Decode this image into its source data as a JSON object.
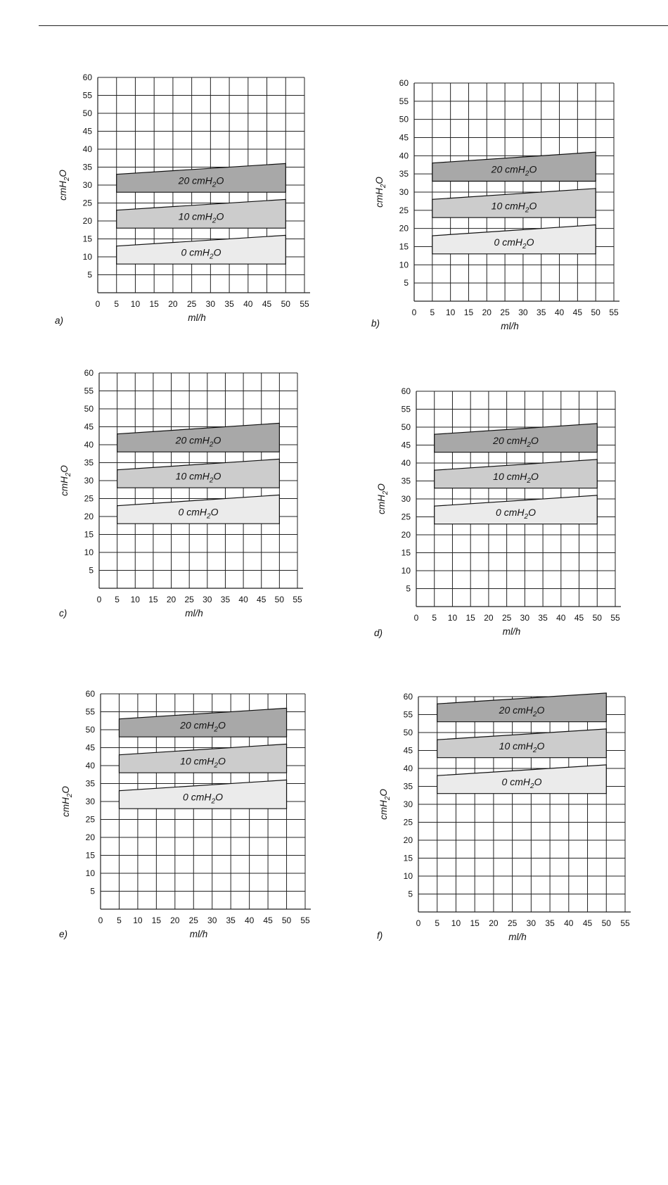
{
  "page": {
    "background": "#ffffff",
    "line_color": "#222222"
  },
  "band_colors": {
    "0 cmH2O": "#ebebeb",
    "10 cmH2O": "#cccccc",
    "20 cmH2O": "#a8a8a8"
  },
  "chart_data": [
    {
      "type": "area",
      "panel": "a)",
      "xlabel": "ml/h",
      "ylabel": "cmH2O",
      "xlim": [
        0,
        55
      ],
      "ylim": [
        0,
        60
      ],
      "x_ticks": [
        "0",
        "5",
        "10",
        "15",
        "20",
        "25",
        "30",
        "35",
        "40",
        "45",
        "50",
        "55"
      ],
      "y_ticks": [
        "5",
        "10",
        "15",
        "20",
        "25",
        "30",
        "35",
        "40",
        "45",
        "50",
        "55",
        "60"
      ],
      "grid": true,
      "series": [
        {
          "name": "0 cmH2O",
          "x": [
            5,
            50
          ],
          "lower": [
            8,
            8
          ],
          "upper": [
            13,
            16
          ]
        },
        {
          "name": "10 cmH2O",
          "x": [
            5,
            50
          ],
          "lower": [
            18,
            18
          ],
          "upper": [
            23,
            26
          ]
        },
        {
          "name": "20 cmH2O",
          "x": [
            5,
            50
          ],
          "lower": [
            28,
            28
          ],
          "upper": [
            33,
            36
          ]
        }
      ]
    },
    {
      "type": "area",
      "panel": "b)",
      "xlabel": "ml/h",
      "ylabel": "cmH2O",
      "xlim": [
        0,
        55
      ],
      "ylim": [
        0,
        60
      ],
      "x_ticks": [
        "0",
        "5",
        "10",
        "15",
        "20",
        "25",
        "30",
        "35",
        "40",
        "45",
        "50",
        "55"
      ],
      "y_ticks": [
        "5",
        "10",
        "15",
        "20",
        "25",
        "30",
        "35",
        "40",
        "45",
        "50",
        "55",
        "60"
      ],
      "grid": true,
      "series": [
        {
          "name": "0 cmH2O",
          "x": [
            5,
            50
          ],
          "lower": [
            13,
            13
          ],
          "upper": [
            18,
            21
          ]
        },
        {
          "name": "10 cmH2O",
          "x": [
            5,
            50
          ],
          "lower": [
            23,
            23
          ],
          "upper": [
            28,
            31
          ]
        },
        {
          "name": "20 cmH2O",
          "x": [
            5,
            50
          ],
          "lower": [
            33,
            33
          ],
          "upper": [
            38,
            41
          ]
        }
      ]
    },
    {
      "type": "area",
      "panel": "c)",
      "xlabel": "ml/h",
      "ylabel": "cmH2O",
      "xlim": [
        0,
        55
      ],
      "ylim": [
        0,
        60
      ],
      "x_ticks": [
        "0",
        "5",
        "10",
        "15",
        "20",
        "25",
        "30",
        "35",
        "40",
        "45",
        "50",
        "55"
      ],
      "y_ticks": [
        "5",
        "10",
        "15",
        "20",
        "25",
        "30",
        "35",
        "40",
        "45",
        "50",
        "55",
        "60"
      ],
      "grid": true,
      "series": [
        {
          "name": "0 cmH2O",
          "x": [
            5,
            50
          ],
          "lower": [
            18,
            18
          ],
          "upper": [
            23,
            26
          ]
        },
        {
          "name": "10 cmH2O",
          "x": [
            5,
            50
          ],
          "lower": [
            28,
            28
          ],
          "upper": [
            33,
            36
          ]
        },
        {
          "name": "20 cmH2O",
          "x": [
            5,
            50
          ],
          "lower": [
            38,
            38
          ],
          "upper": [
            43,
            46
          ]
        }
      ]
    },
    {
      "type": "area",
      "panel": "d)",
      "xlabel": "ml/h",
      "ylabel": "cmH2O",
      "xlim": [
        0,
        55
      ],
      "ylim": [
        0,
        60
      ],
      "x_ticks": [
        "0",
        "5",
        "10",
        "15",
        "20",
        "25",
        "30",
        "35",
        "40",
        "45",
        "50",
        "55"
      ],
      "y_ticks": [
        "5",
        "10",
        "15",
        "20",
        "25",
        "30",
        "35",
        "40",
        "45",
        "50",
        "55",
        "60"
      ],
      "grid": true,
      "series": [
        {
          "name": "0 cmH2O",
          "x": [
            5,
            50
          ],
          "lower": [
            23,
            23
          ],
          "upper": [
            28,
            31
          ]
        },
        {
          "name": "10 cmH2O",
          "x": [
            5,
            50
          ],
          "lower": [
            33,
            33
          ],
          "upper": [
            38,
            41
          ]
        },
        {
          "name": "20 cmH2O",
          "x": [
            5,
            50
          ],
          "lower": [
            43,
            43
          ],
          "upper": [
            48,
            51
          ]
        }
      ]
    },
    {
      "type": "area",
      "panel": "e)",
      "xlabel": "ml/h",
      "ylabel": "cmH2O",
      "xlim": [
        0,
        55
      ],
      "ylim": [
        0,
        60
      ],
      "x_ticks": [
        "0",
        "5",
        "10",
        "15",
        "20",
        "25",
        "30",
        "35",
        "40",
        "45",
        "50",
        "55"
      ],
      "y_ticks": [
        "5",
        "10",
        "15",
        "20",
        "25",
        "30",
        "35",
        "40",
        "45",
        "50",
        "55",
        "60"
      ],
      "grid": true,
      "series": [
        {
          "name": "0 cmH2O",
          "x": [
            5,
            50
          ],
          "lower": [
            28,
            28
          ],
          "upper": [
            33,
            36
          ]
        },
        {
          "name": "10 cmH2O",
          "x": [
            5,
            50
          ],
          "lower": [
            38,
            38
          ],
          "upper": [
            43,
            46
          ]
        },
        {
          "name": "20 cmH2O",
          "x": [
            5,
            50
          ],
          "lower": [
            48,
            48
          ],
          "upper": [
            53,
            56
          ]
        }
      ]
    },
    {
      "type": "area",
      "panel": "f)",
      "xlabel": "ml/h",
      "ylabel": "cmH2O",
      "xlim": [
        0,
        55
      ],
      "ylim": [
        0,
        60
      ],
      "x_ticks": [
        "0",
        "5",
        "10",
        "15",
        "20",
        "25",
        "30",
        "35",
        "40",
        "45",
        "50",
        "55"
      ],
      "y_ticks": [
        "5",
        "10",
        "15",
        "20",
        "25",
        "30",
        "35",
        "40",
        "45",
        "50",
        "55",
        "60"
      ],
      "grid": true,
      "series": [
        {
          "name": "0 cmH2O",
          "x": [
            5,
            50
          ],
          "lower": [
            33,
            33
          ],
          "upper": [
            38,
            41
          ]
        },
        {
          "name": "10 cmH2O",
          "x": [
            5,
            50
          ],
          "lower": [
            43,
            43
          ],
          "upper": [
            48,
            51
          ]
        },
        {
          "name": "20 cmH2O",
          "x": [
            5,
            50
          ],
          "lower": [
            53,
            53
          ],
          "upper": [
            58,
            61
          ]
        }
      ]
    }
  ]
}
